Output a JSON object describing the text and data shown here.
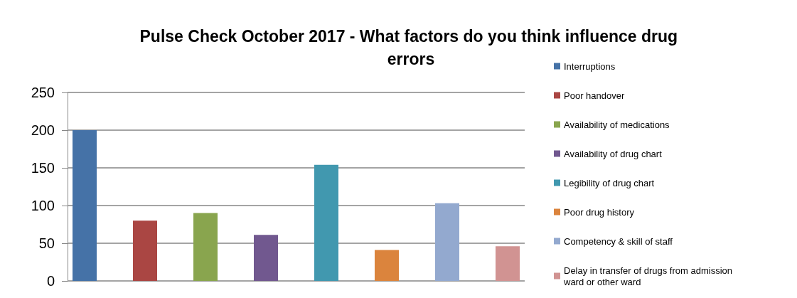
{
  "chart_data": {
    "type": "bar",
    "title": "Pulse Check October 2017 - What factors do you think influence drug errors",
    "categories": [
      null
    ],
    "series": [
      {
        "name": "Interruptions",
        "color": "#4572a7",
        "values": [
          200
        ]
      },
      {
        "name": "Poor handover",
        "color": "#aa4643",
        "values": [
          80
        ]
      },
      {
        "name": "Availability of medications",
        "color": "#89a54e",
        "values": [
          90
        ]
      },
      {
        "name": "Availability of drug chart",
        "color": "#71588f",
        "values": [
          61
        ]
      },
      {
        "name": "Legibility of drug chart",
        "color": "#4198af",
        "values": [
          154
        ]
      },
      {
        "name": "Poor drug history",
        "color": "#db843d",
        "values": [
          41
        ]
      },
      {
        "name": "Competency & skill of staff",
        "color": "#93a9cf",
        "values": [
          103
        ]
      },
      {
        "name": "Delay in transfer of drugs from admission ward or other ward",
        "color": "#d19392",
        "values": [
          46
        ]
      }
    ],
    "ylim": [
      0,
      250
    ],
    "yticks": [
      0,
      50,
      100,
      150,
      200,
      250
    ],
    "grid": "y",
    "legend": "right"
  }
}
